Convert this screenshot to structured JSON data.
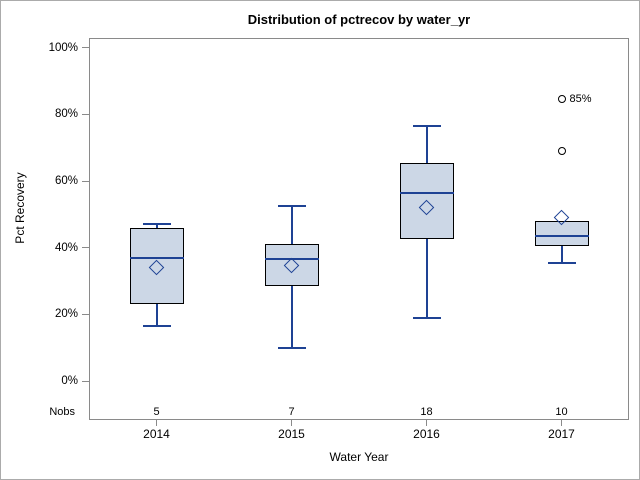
{
  "chart_data": {
    "type": "box",
    "title": "Distribution of pctrecov by water_yr",
    "xlabel": "Water Year",
    "ylabel": "Pct Recovery",
    "ylim": [
      0,
      100
    ],
    "grid": false,
    "legend": "none",
    "yticks": [
      {
        "value": 0,
        "label": "0%"
      },
      {
        "value": 20,
        "label": "20%"
      },
      {
        "value": 40,
        "label": "40%"
      },
      {
        "value": 60,
        "label": "60%"
      },
      {
        "value": 80,
        "label": "80%"
      },
      {
        "value": 100,
        "label": "100%"
      }
    ],
    "nobs_row_label": "Nobs",
    "categories": [
      "2014",
      "2015",
      "2016",
      "2017"
    ],
    "nobs": [
      5,
      7,
      18,
      10
    ],
    "series": [
      {
        "category": "2014",
        "min": 16.5,
        "q1": 23,
        "median": 37,
        "mean": 34,
        "q3": 46,
        "max": 47,
        "outliers": []
      },
      {
        "category": "2015",
        "min": 10,
        "q1": 28.5,
        "median": 36.5,
        "mean": 34.5,
        "q3": 41,
        "max": 52.5,
        "outliers": []
      },
      {
        "category": "2016",
        "min": 19,
        "q1": 42.5,
        "median": 56.5,
        "mean": 52,
        "q3": 65.5,
        "max": 76.5,
        "outliers": []
      },
      {
        "category": "2017",
        "min": 35.5,
        "q1": 40.5,
        "median": 43.5,
        "mean": 49,
        "q3": 48,
        "max": 48,
        "outliers": [
          {
            "value": 69,
            "label": ""
          },
          {
            "value": 84.5,
            "label": "85%"
          }
        ]
      }
    ],
    "colors": {
      "background": "#ffffff",
      "page_border": "#ababab",
      "frame": "#8a8a8a",
      "text": "#000000",
      "box_fill": "#ccd7e6",
      "box_border": "#000000",
      "whisker": "#1e4294",
      "outlier": "#000000"
    }
  }
}
